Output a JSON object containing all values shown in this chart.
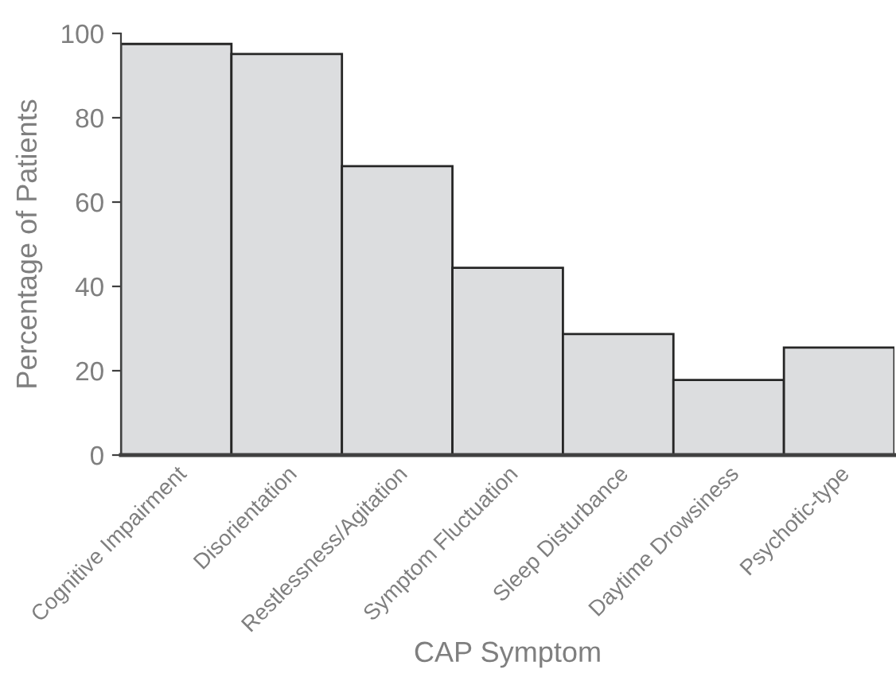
{
  "chart_data": {
    "type": "bar",
    "xlabel": "CAP Symptom",
    "ylabel": "Percentage of Patients",
    "categories": [
      "Cognitive Impairment",
      "Disorientation",
      "Restlessness/Agitation",
      "Symptom Fluctuation",
      "Sleep Disturbance",
      "Daytime Drowsiness",
      "Psychotic-type"
    ],
    "values": [
      97.5,
      95.1,
      68.5,
      44.4,
      28.7,
      17.8,
      25.5
    ],
    "color": "#dcdddf",
    "ylim": [
      0,
      100
    ],
    "yticks": [
      0,
      20,
      40,
      60,
      80,
      100
    ],
    "grid": false
  }
}
